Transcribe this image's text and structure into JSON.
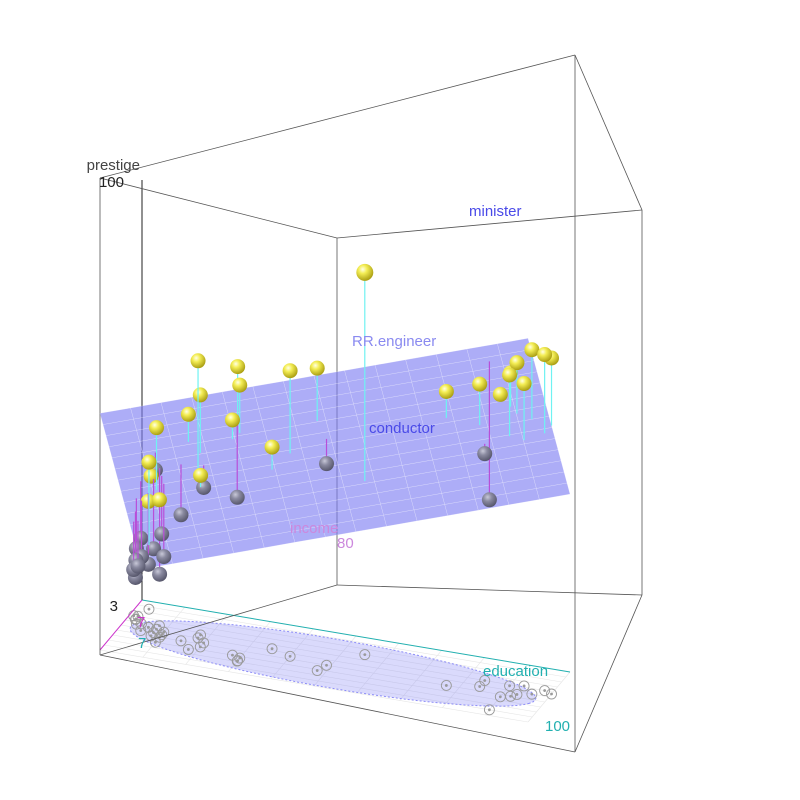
{
  "chart_data": {
    "type": "scatter",
    "subtype": "3d-scatter-with-regression-plane",
    "axes": {
      "x": {
        "label": "education",
        "ticks": [
          "7",
          "100"
        ]
      },
      "y": {
        "label": "income",
        "ticks": [
          "7",
          "80"
        ]
      },
      "z": {
        "label": "prestige",
        "ticks": [
          "3",
          "100"
        ]
      }
    },
    "labeled_points": [
      "minister",
      "RR.engineer",
      "conductor"
    ],
    "colors": {
      "points": "#f2ea3c",
      "plane": "#7b7bf2",
      "residual_pos": "#6ff2f2",
      "residual_neg": "#b84fd8",
      "ellipse": "#8c8cf7",
      "education_axis": "#22b0b0",
      "income_axis": "#cc33cc",
      "point_label": "#4a4ae8",
      "box": "#555555"
    },
    "points": [
      {
        "education": 55,
        "income": 30,
        "prestige": 91,
        "label": "minister"
      },
      {
        "education": 98,
        "income": 40,
        "prestige": 80
      },
      {
        "education": 96,
        "income": 50,
        "prestige": 82
      },
      {
        "education": 100,
        "income": 44,
        "prestige": 80
      },
      {
        "education": 93,
        "income": 55,
        "prestige": 79
      },
      {
        "education": 90,
        "income": 42,
        "prestige": 74
      },
      {
        "education": 92,
        "income": 60,
        "prestige": 77
      },
      {
        "education": 84,
        "income": 52,
        "prestige": 72
      },
      {
        "education": 93,
        "income": 38,
        "prestige": 72
      },
      {
        "education": 90,
        "income": 64,
        "prestige": 72
      },
      {
        "education": 77,
        "income": 60,
        "prestige": 70
      },
      {
        "education": 40,
        "income": 55,
        "prestige": 68
      },
      {
        "education": 48,
        "income": 72,
        "prestige": 72
      },
      {
        "education": 84,
        "income": 40,
        "prestige": 54
      },
      {
        "education": 30,
        "income": 78,
        "prestige": 70,
        "label": "RR.engineer"
      },
      {
        "education": 18,
        "income": 50,
        "prestige": 66
      },
      {
        "education": 30,
        "income": 73,
        "prestige": 65
      },
      {
        "education": 20,
        "income": 65,
        "prestige": 60
      },
      {
        "education": 28,
        "income": 70,
        "prestige": 56
      },
      {
        "education": 49,
        "income": 60,
        "prestige": 48
      },
      {
        "education": 35,
        "income": 47,
        "prestige": 48
      },
      {
        "education": 18,
        "income": 73,
        "prestige": 56,
        "label": "conductor"
      },
      {
        "education": 30,
        "income": 79,
        "prestige": 39
      },
      {
        "education": 20,
        "income": 57,
        "prestige": 37
      },
      {
        "education": 15,
        "income": 60,
        "prestige": 30
      },
      {
        "education": 10,
        "income": 60,
        "prestige": 15
      },
      {
        "education": 8,
        "income": 47,
        "prestige": 48
      },
      {
        "education": 10,
        "income": 70,
        "prestige": 41
      },
      {
        "education": 18,
        "income": 44,
        "prestige": 38
      },
      {
        "education": 8,
        "income": 60,
        "prestige": 38
      },
      {
        "education": 8,
        "income": 40,
        "prestige": 30
      },
      {
        "education": 6,
        "income": 46,
        "prestige": 30
      },
      {
        "education": 10,
        "income": 55,
        "prestige": 24
      },
      {
        "education": 8,
        "income": 54,
        "prestige": 20
      },
      {
        "education": 10,
        "income": 50,
        "prestige": 18
      },
      {
        "education": 5,
        "income": 54,
        "prestige": 22
      },
      {
        "education": 6,
        "income": 46,
        "prestige": 15
      },
      {
        "education": 4,
        "income": 42,
        "prestige": 16
      },
      {
        "education": 3,
        "income": 44,
        "prestige": 18
      },
      {
        "education": 2,
        "income": 36,
        "prestige": 10
      },
      {
        "education": 3,
        "income": 14,
        "prestige": 35
      },
      {
        "education": 2,
        "income": 30,
        "prestige": 12
      },
      {
        "education": 2,
        "income": 35,
        "prestige": 14
      },
      {
        "education": 1,
        "income": 30,
        "prestige": 11
      },
      {
        "education": 90,
        "income": 90,
        "prestige": 50
      }
    ],
    "plane": {
      "intercept": 7.35,
      "education": 0.35,
      "income": 0.49
    }
  }
}
